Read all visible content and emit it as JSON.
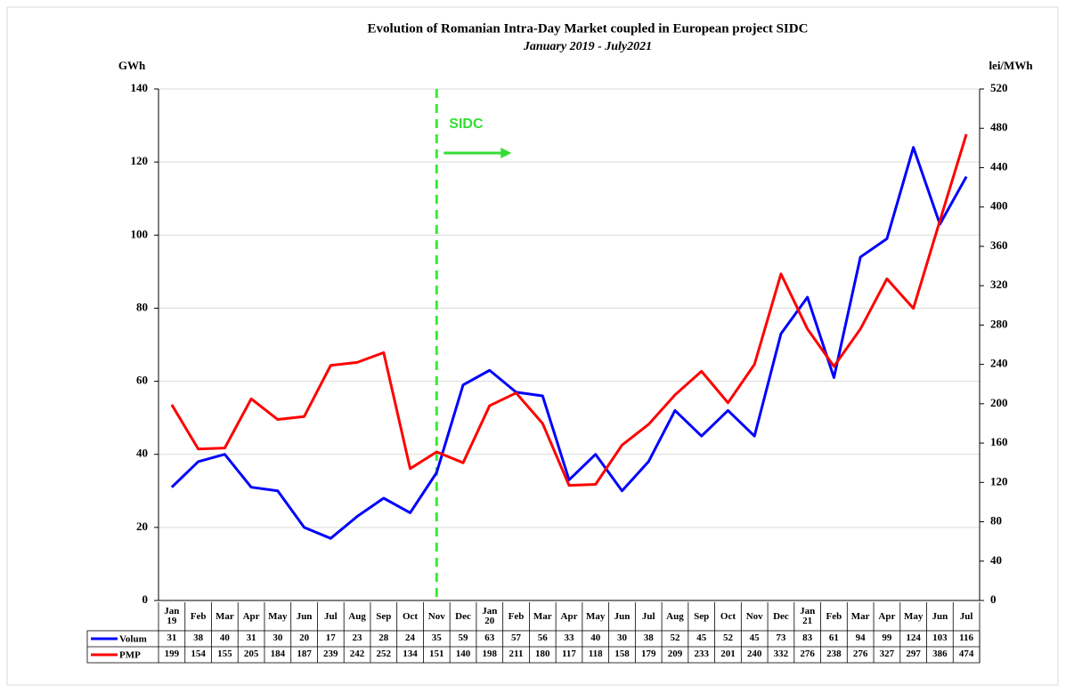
{
  "chart_data": {
    "type": "line",
    "title": "Evolution of Romanian Intra-Day Market coupled in European project SIDC",
    "subtitle": "January 2019 - July2021",
    "y_label": "GWh",
    "y2_label": "lei/MWh",
    "annotation": "SIDC",
    "categories": [
      "Jan 19",
      "Feb",
      "Mar",
      "Apr",
      "May",
      "Jun",
      "Jul",
      "Aug",
      "Sep",
      "Oct",
      "Nov",
      "Dec",
      "Jan 20",
      "Feb",
      "Mar",
      "Apr",
      "May",
      "Jun",
      "Jul",
      "Aug",
      "Sep",
      "Oct",
      "Nov",
      "Dec",
      "Jan 21",
      "Feb",
      "Mar",
      "Apr",
      "May",
      "Jun",
      "Jul"
    ],
    "series": [
      {
        "name": "Volum",
        "color": "#0000ff",
        "values": [
          31,
          38,
          40,
          31,
          30,
          20,
          17,
          23,
          28,
          24,
          35,
          59,
          63,
          57,
          56,
          33,
          40,
          30,
          38,
          52,
          45,
          52,
          45,
          73,
          83,
          61,
          94,
          99,
          124,
          103,
          116
        ]
      },
      {
        "name": "PMP",
        "color": "#ff0000",
        "axis": "y2",
        "values": [
          199,
          154,
          155,
          205,
          184,
          187,
          239,
          242,
          252,
          134,
          151,
          140,
          198,
          211,
          180,
          117,
          118,
          158,
          179,
          209,
          233,
          201,
          240,
          332,
          276,
          238,
          276,
          327,
          297,
          386,
          474
        ]
      }
    ],
    "ylim": [
      0,
      140
    ],
    "yticks": [
      0,
      20,
      40,
      60,
      80,
      100,
      120,
      140
    ],
    "y2lim": [
      0,
      520
    ],
    "y2ticks": [
      0,
      40,
      80,
      120,
      160,
      200,
      240,
      280,
      320,
      360,
      400,
      440,
      480,
      520
    ],
    "grid": true
  }
}
